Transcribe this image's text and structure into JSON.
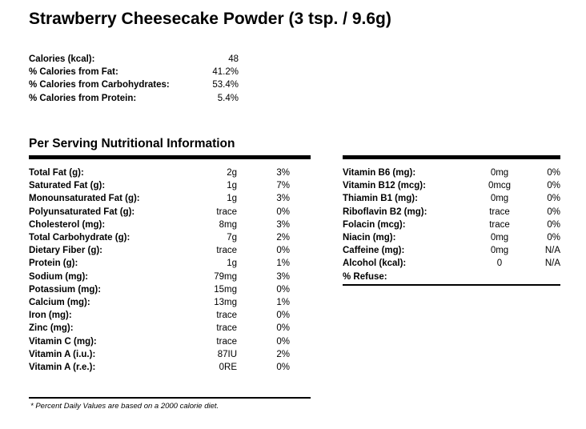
{
  "title": "Strawberry Cheesecake Powder (3 tsp. / 9.6g)",
  "summary": [
    {
      "label": "Calories (kcal):",
      "value": "48"
    },
    {
      "label": "% Calories from Fat:",
      "value": "41.2%"
    },
    {
      "label": "% Calories from Carbohydrates:",
      "value": "53.4%"
    },
    {
      "label": "% Calories from Protein:",
      "value": "5.4%"
    }
  ],
  "section_title": "Per Serving Nutritional Information",
  "left_nutrients": [
    {
      "label": "Total Fat (g):",
      "amount": "2g",
      "dv": "3%"
    },
    {
      "label": "Saturated Fat (g):",
      "amount": "1g",
      "dv": "7%"
    },
    {
      "label": "Monounsaturated Fat (g):",
      "amount": "1g",
      "dv": "3%"
    },
    {
      "label": "Polyunsaturated Fat (g):",
      "amount": "trace",
      "dv": "0%"
    },
    {
      "label": "Cholesterol (mg):",
      "amount": "8mg",
      "dv": "3%"
    },
    {
      "label": "Total Carbohydrate (g):",
      "amount": "7g",
      "dv": "2%"
    },
    {
      "label": "Dietary Fiber (g):",
      "amount": "trace",
      "dv": "0%"
    },
    {
      "label": "Protein (g):",
      "amount": "1g",
      "dv": "1%"
    },
    {
      "label": "Sodium (mg):",
      "amount": "79mg",
      "dv": "3%"
    },
    {
      "label": "Potassium (mg):",
      "amount": "15mg",
      "dv": "0%"
    },
    {
      "label": "Calcium (mg):",
      "amount": "13mg",
      "dv": "1%"
    },
    {
      "label": "Iron (mg):",
      "amount": "trace",
      "dv": "0%"
    },
    {
      "label": "Zinc (mg):",
      "amount": "trace",
      "dv": "0%"
    },
    {
      "label": "Vitamin C (mg):",
      "amount": "trace",
      "dv": "0%"
    },
    {
      "label": "Vitamin A (i.u.):",
      "amount": "87IU",
      "dv": "2%"
    },
    {
      "label": "Vitamin A (r.e.):",
      "amount": "0RE",
      "dv": "0%"
    }
  ],
  "right_nutrients": [
    {
      "label": "Vitamin B6 (mg):",
      "amount": "0mg",
      "dv": "0%"
    },
    {
      "label": "Vitamin B12 (mcg):",
      "amount": "0mcg",
      "dv": "0%"
    },
    {
      "label": "Thiamin B1 (mg):",
      "amount": "0mg",
      "dv": "0%"
    },
    {
      "label": "Riboflavin B2 (mg):",
      "amount": "trace",
      "dv": "0%"
    },
    {
      "label": "Folacin (mcg):",
      "amount": "trace",
      "dv": "0%"
    },
    {
      "label": "Niacin (mg):",
      "amount": "0mg",
      "dv": "0%"
    },
    {
      "label": "Caffeine (mg):",
      "amount": "0mg",
      "dv": "N/A"
    },
    {
      "label": "Alcohol (kcal):",
      "amount": "0",
      "dv": "N/A"
    },
    {
      "label": "% Refuse:",
      "amount": "",
      "dv": ""
    }
  ],
  "footnote": "* Percent Daily Values are based on a 2000 calorie diet."
}
